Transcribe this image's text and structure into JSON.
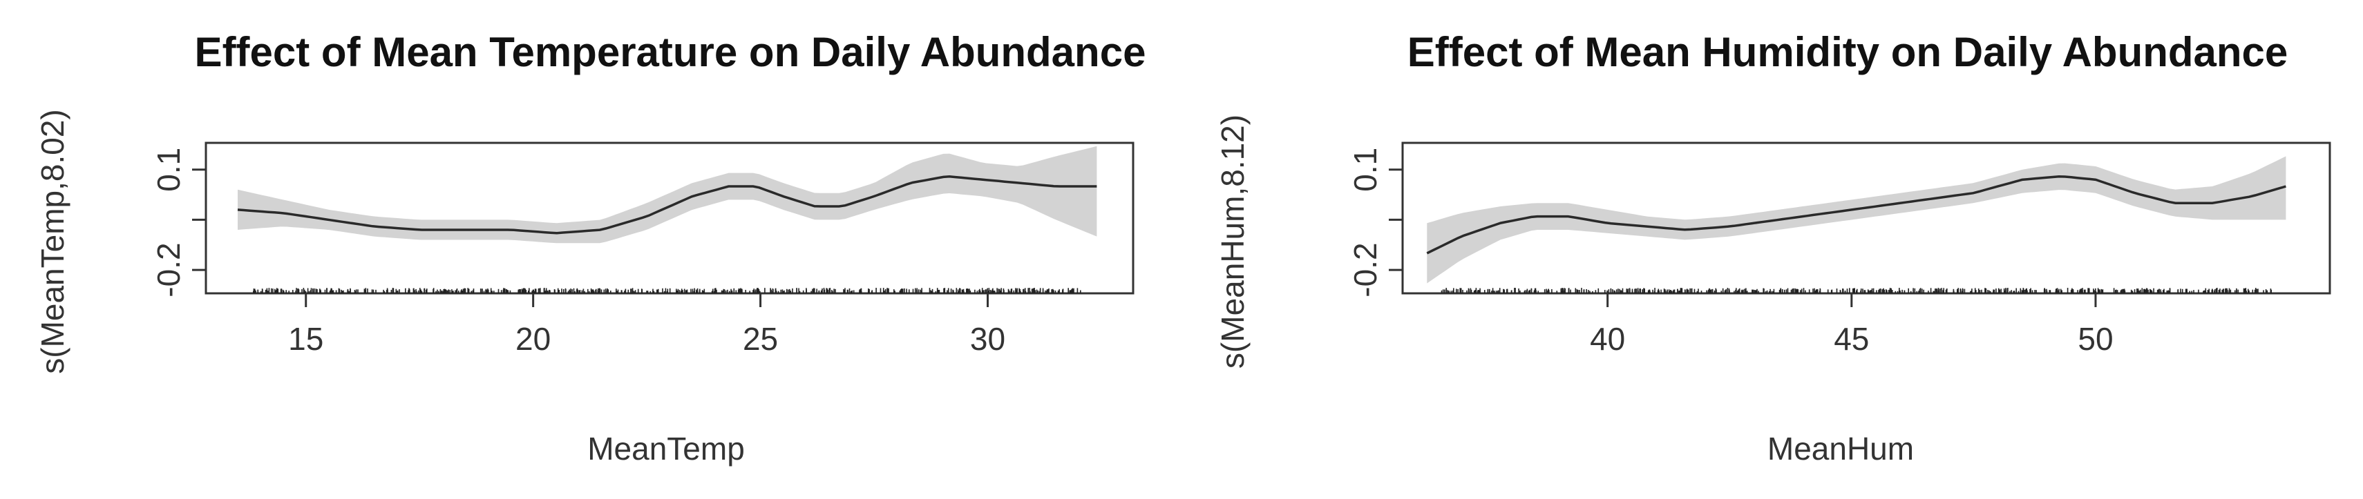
{
  "chart_data": [
    {
      "type": "line",
      "title": "Effect of Mean Temperature on Daily Abundance",
      "xlabel": "MeanTemp",
      "ylabel": "s(MeanTemp,8.02)",
      "xlim": [
        12.8,
        33.2
      ],
      "ylim": [
        -0.27,
        0.18
      ],
      "x_ticks": [
        15,
        20,
        25,
        30
      ],
      "x_tick_labels": [
        "15",
        "20",
        "25",
        "30"
      ],
      "y_ticks": [
        -0.2,
        0.1
      ],
      "y_tick_labels": [
        "-0.2",
        "0.1"
      ],
      "grid": false,
      "series": [
        {
          "x": [
            13.5,
            14.5,
            15.5,
            16.5,
            17.5,
            18.5,
            19.5,
            20.5,
            21.5,
            22.5,
            23.5,
            24.3,
            24.9,
            25.5,
            26.2,
            26.8,
            27.5,
            28.3,
            29.1,
            29.9,
            30.7,
            31.5,
            32.4
          ],
          "y": [
            -0.02,
            -0.03,
            -0.05,
            -0.07,
            -0.08,
            -0.08,
            -0.08,
            -0.09,
            -0.08,
            -0.04,
            0.02,
            0.05,
            0.05,
            0.02,
            -0.01,
            -0.01,
            0.02,
            0.06,
            0.08,
            0.07,
            0.06,
            0.05,
            0.05
          ],
          "lower": [
            -0.08,
            -0.07,
            -0.08,
            -0.1,
            -0.11,
            -0.11,
            -0.11,
            -0.12,
            -0.12,
            -0.08,
            -0.02,
            0.01,
            0.01,
            -0.02,
            -0.05,
            -0.05,
            -0.02,
            0.01,
            0.03,
            0.02,
            0.0,
            -0.05,
            -0.1
          ],
          "upper": [
            0.04,
            0.01,
            -0.02,
            -0.04,
            -0.05,
            -0.05,
            -0.05,
            -0.06,
            -0.05,
            0.0,
            0.06,
            0.09,
            0.09,
            0.06,
            0.03,
            0.03,
            0.06,
            0.12,
            0.15,
            0.12,
            0.11,
            0.14,
            0.17
          ]
        }
      ]
    },
    {
      "type": "line",
      "title": "Effect of Mean Humidity on Daily Abundance",
      "xlabel": "MeanHum",
      "ylabel": "s(MeanHum,8.12)",
      "xlim": [
        35.8,
        54.8
      ],
      "ylim": [
        -0.27,
        0.18
      ],
      "x_ticks": [
        40,
        45,
        50
      ],
      "x_tick_labels": [
        "40",
        "45",
        "50"
      ],
      "y_ticks": [
        -0.2,
        0.1
      ],
      "y_tick_labels": [
        "-0.2",
        "0.1"
      ],
      "grid": false,
      "series": [
        {
          "x": [
            36.3,
            37.0,
            37.8,
            38.5,
            39.2,
            40.0,
            40.8,
            41.6,
            42.5,
            43.5,
            44.5,
            45.5,
            46.5,
            47.5,
            48.5,
            49.3,
            50.0,
            50.8,
            51.6,
            52.4,
            53.2,
            53.9
          ],
          "y": [
            -0.15,
            -0.1,
            -0.06,
            -0.04,
            -0.04,
            -0.06,
            -0.07,
            -0.08,
            -0.07,
            -0.05,
            -0.03,
            -0.01,
            0.01,
            0.03,
            0.07,
            0.08,
            0.07,
            0.03,
            0.0,
            0.0,
            0.02,
            0.05
          ],
          "lower": [
            -0.24,
            -0.17,
            -0.11,
            -0.08,
            -0.08,
            -0.09,
            -0.1,
            -0.11,
            -0.1,
            -0.08,
            -0.06,
            -0.04,
            -0.02,
            0.0,
            0.03,
            0.04,
            0.03,
            -0.01,
            -0.04,
            -0.05,
            -0.05,
            -0.05
          ],
          "upper": [
            -0.06,
            -0.03,
            -0.01,
            0.0,
            0.0,
            -0.02,
            -0.04,
            -0.05,
            -0.04,
            -0.02,
            0.0,
            0.02,
            0.04,
            0.06,
            0.1,
            0.12,
            0.11,
            0.07,
            0.04,
            0.05,
            0.09,
            0.14
          ]
        }
      ]
    }
  ]
}
